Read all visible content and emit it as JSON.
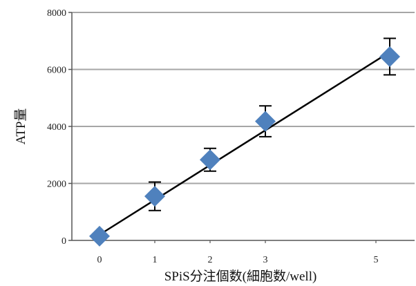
{
  "chart_data": {
    "type": "scatter",
    "title": "",
    "xlabel": "SPiS分注個数(細胞数/well)",
    "ylabel": "ATP量",
    "x_ticks": [
      "0",
      "1",
      "2",
      "3",
      "5"
    ],
    "y_ticks": [
      "0",
      "2000",
      "4000",
      "6000",
      "8000"
    ],
    "xlim": [
      -0.5,
      5.7
    ],
    "ylim": [
      0,
      8000
    ],
    "grid": true,
    "legend": "none",
    "series": [
      {
        "x": [
          0,
          1,
          2,
          3,
          5.25
        ],
        "y": [
          150,
          1550,
          2830,
          4180,
          6450
        ],
        "error": [
          0,
          500,
          400,
          540,
          640
        ],
        "marker": "diamond",
        "color": "#4f81bd"
      }
    ],
    "trendline": {
      "x": [
        0,
        5.2
      ],
      "y": [
        200,
        6550
      ],
      "color": "#000000"
    },
    "colors": {
      "marker": "#4f81bd",
      "gridline": "#a6a6a6",
      "axis": "#555555",
      "trendline": "#000000",
      "errorbar": "#000000"
    }
  }
}
